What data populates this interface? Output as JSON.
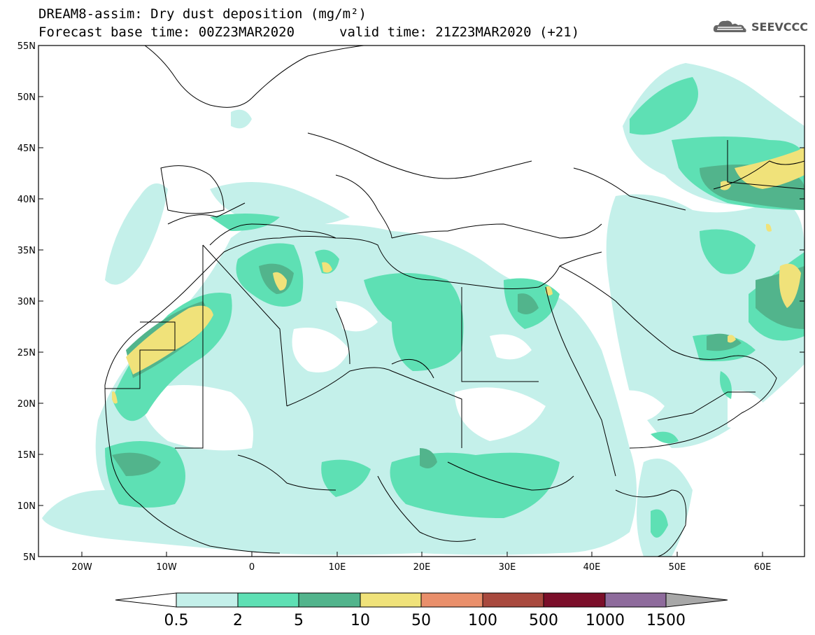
{
  "header": {
    "title": "DREAM8-assim: Dry dust deposition (mg/m²)",
    "base_time": "Forecast base time: 00Z23MAR2020",
    "valid_time": "valid time: 21Z23MAR2020 (+21)",
    "logo_text": "SEEVCCC",
    "logo_icon": "cloud-icon"
  },
  "map": {
    "lat_labels": [
      "55N",
      "50N",
      "45N",
      "40N",
      "35N",
      "30N",
      "25N",
      "20N",
      "15N",
      "10N",
      "5N"
    ],
    "lon_labels": [
      "20W",
      "10W",
      "0",
      "10E",
      "20E",
      "30E",
      "40E",
      "50E",
      "60E"
    ]
  },
  "legend": {
    "thresholds": [
      "0.5",
      "2",
      "5",
      "10",
      "50",
      "100",
      "500",
      "1000",
      "1500"
    ],
    "colors": [
      "#c4f0ea",
      "#5ee0b4",
      "#52b48c",
      "#f0e27a",
      "#e98f6b",
      "#a8493e",
      "#7b0f2a",
      "#8e6b9c",
      "#a8a8a8"
    ]
  }
}
